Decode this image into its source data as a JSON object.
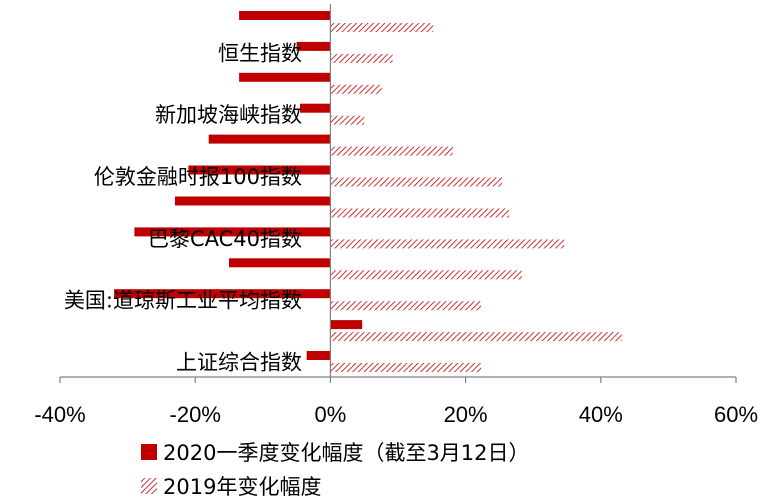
{
  "chart_data": {
    "type": "bar",
    "orientation": "horizontal",
    "categories": [
      "上证综合指数",
      "",
      "美国:道琼斯工业平均指数",
      "",
      "巴黎CAC40指数",
      "",
      "伦敦金融时报100指数",
      "",
      "新加坡海峡指数",
      "",
      "恒生指数",
      ""
    ],
    "series": [
      {
        "name": "2020一季度变化幅度（截至3月12日）",
        "color": "#c00000",
        "pattern": "solid",
        "values": [
          -3.5,
          4.7,
          -32.0,
          -15.0,
          -29.0,
          -23.0,
          -21.0,
          -18.0,
          -4.5,
          -13.5,
          -5.0,
          -13.5
        ]
      },
      {
        "name": "2019年变化幅度",
        "color": "#c00000",
        "pattern": "diagonal-hatch",
        "values": [
          22.3,
          43.1,
          22.3,
          28.3,
          34.6,
          26.4,
          25.4,
          18.1,
          5.0,
          7.6,
          9.2,
          15.2
        ]
      }
    ],
    "xlim": [
      -40,
      60
    ],
    "xticks": [
      -40,
      -20,
      0,
      20,
      40,
      60
    ],
    "tick_format": "percent",
    "grid": false,
    "legend": {
      "placement": "bottom",
      "entries": [
        "2020一季度变化幅度（截至3月12日）",
        "2019年变化幅度"
      ]
    }
  }
}
